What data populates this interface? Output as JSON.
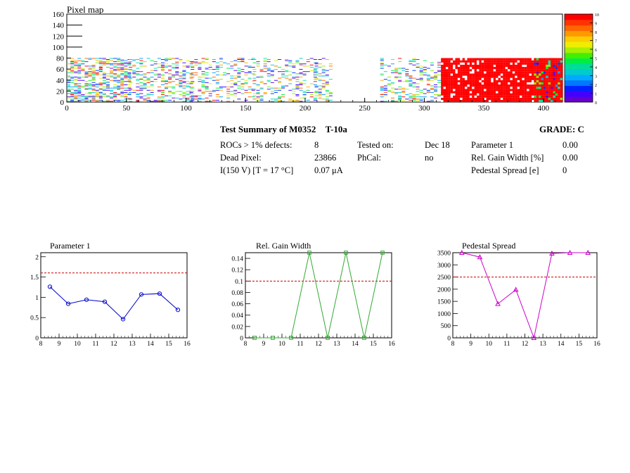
{
  "pixel_map": {
    "title": "Pixel map",
    "x_ticks": [
      "0",
      "50",
      "100",
      "150",
      "200",
      "250",
      "300",
      "350",
      "400"
    ],
    "y_ticks": [
      "0",
      "20",
      "40",
      "60",
      "80",
      "100",
      "120",
      "140",
      "160"
    ],
    "palette_labels": [
      "0",
      "1",
      "2",
      "3",
      "4",
      "5",
      "6",
      "7",
      "8",
      "9",
      "10"
    ]
  },
  "summary": {
    "title": "Test Summary of M0352",
    "test_id": "T-10a",
    "grade": "GRADE:  C",
    "rows": [
      {
        "c1_label": "ROCs > 1% defects:",
        "c1_value": "8",
        "c2_label": "Tested on:",
        "c2_value": "Dec 18",
        "c3_label": "Parameter 1",
        "c3_value": "0.00"
      },
      {
        "c1_label": "Dead Pixel:",
        "c1_value": "23866",
        "c2_label": "PhCal:",
        "c2_value": "no",
        "c3_label": "Rel. Gain Width [%]",
        "c3_value": "0.00"
      },
      {
        "c1_label": "I(150 V) [T = 17 °C]",
        "c1_value": "0.07 μA",
        "c2_label": "",
        "c2_value": "",
        "c3_label": "Pedestal Spread [e]",
        "c3_value": "0"
      }
    ]
  },
  "chart_data": [
    {
      "type": "line",
      "title": "Parameter 1",
      "x": [
        8.5,
        9.5,
        10.5,
        11.5,
        12.5,
        13.5,
        14.5,
        15.5
      ],
      "values": [
        1.26,
        0.84,
        0.94,
        0.89,
        0.46,
        1.07,
        1.09,
        0.69
      ],
      "xlim": [
        8,
        16
      ],
      "ylim": [
        0,
        2.1
      ],
      "x_ticks": [
        8,
        9,
        10,
        11,
        12,
        13,
        14,
        15,
        16
      ],
      "y_ticks": [
        0,
        0.5,
        1,
        1.5,
        2
      ],
      "y_tick_labels": [
        "0",
        "0.5",
        "1",
        "1.5",
        "2"
      ],
      "threshold": 1.6,
      "color": "#0000cc",
      "marker": "circle"
    },
    {
      "type": "line",
      "title": "Rel. Gain Width",
      "x": [
        8.5,
        9.5,
        10.5,
        11.5,
        12.5,
        13.5,
        14.5,
        15.5
      ],
      "values": [
        0,
        0,
        0,
        0.15,
        0,
        0.15,
        0,
        0.15
      ],
      "xlim": [
        8,
        16
      ],
      "ylim": [
        0,
        0.15
      ],
      "x_ticks": [
        8,
        9,
        10,
        11,
        12,
        13,
        14,
        15,
        16
      ],
      "y_ticks": [
        0,
        0.02,
        0.04,
        0.06,
        0.08,
        0.1,
        0.12,
        0.14
      ],
      "y_tick_labels": [
        "0",
        "0.02",
        "0.04",
        "0.06",
        "0.08",
        "0.1",
        "0.12",
        "0.14"
      ],
      "threshold": 0.1,
      "color": "#33aa33",
      "marker": "square"
    },
    {
      "type": "line",
      "title": "Pedestal Spread",
      "x": [
        8.5,
        9.5,
        10.5,
        11.5,
        12.5,
        13.5,
        14.5,
        15.5
      ],
      "values": [
        3500,
        3320,
        1400,
        1980,
        0,
        3470,
        3500,
        3500
      ],
      "xlim": [
        8,
        16
      ],
      "ylim": [
        0,
        3500
      ],
      "x_ticks": [
        8,
        9,
        10,
        11,
        12,
        13,
        14,
        15,
        16
      ],
      "y_ticks": [
        0,
        500,
        1000,
        1500,
        2000,
        2500,
        3000,
        3500
      ],
      "y_tick_labels": [
        "0",
        "500",
        "1000",
        "1500",
        "2000",
        "2500",
        "3000",
        "3500"
      ],
      "threshold": 2500,
      "color": "#cc00cc",
      "marker": "triangle"
    }
  ]
}
